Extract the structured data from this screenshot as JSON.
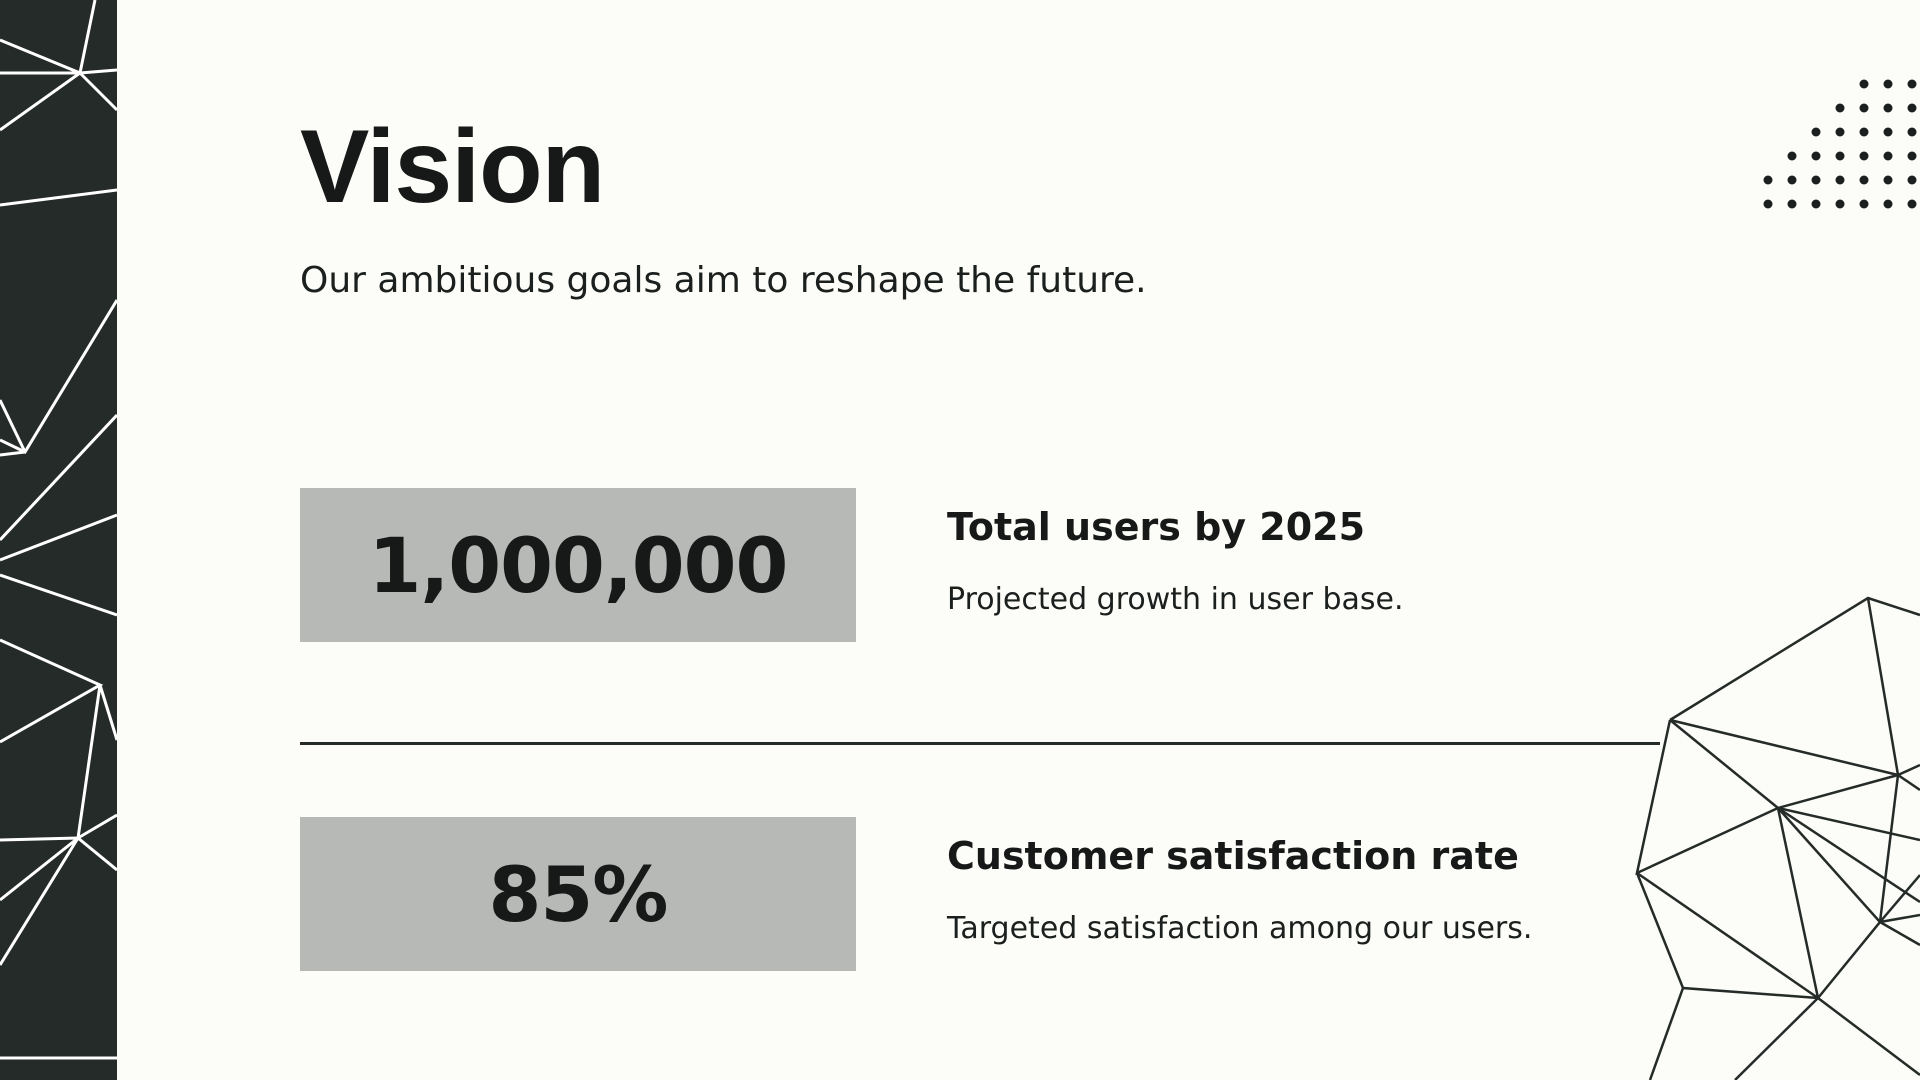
{
  "slide": {
    "title": "Vision",
    "subtitle": "Our ambitious goals aim to reshape the future.",
    "stats": [
      {
        "value": "1,000,000",
        "label": "Total users by 2025",
        "description": "Projected growth in user base."
      },
      {
        "value": "85%",
        "label": "Customer satisfaction rate",
        "description": "Targeted satisfaction among our users."
      }
    ]
  },
  "colors": {
    "background": "#fcfcf8",
    "dark_accent": "#242b28",
    "stat_box": "#b7b9b7",
    "text": "#161918"
  },
  "decorations": [
    "geometric-line-pattern",
    "dot-grid",
    "polygon-line-art"
  ]
}
